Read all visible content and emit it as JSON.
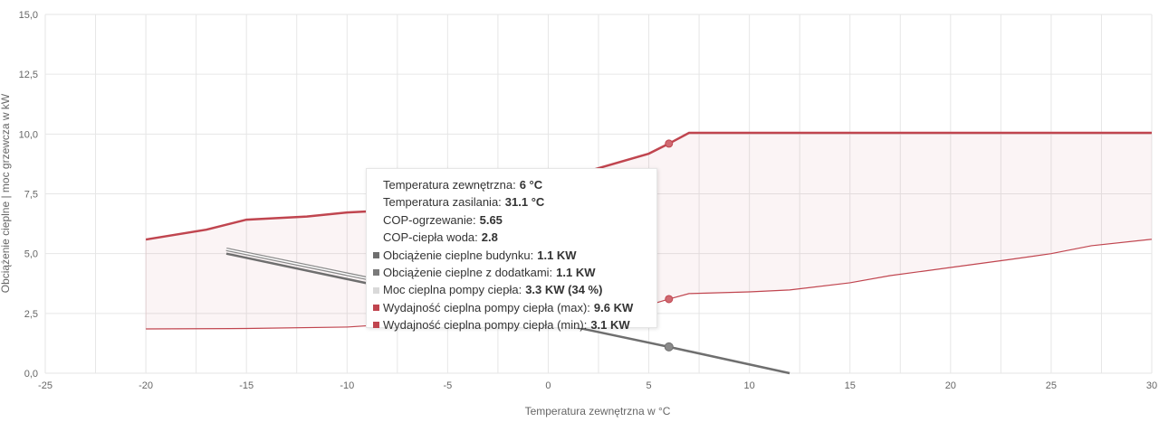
{
  "chart_data": {
    "type": "line",
    "title": "",
    "xlabel": "Temperatura zewnętrzna w °C",
    "ylabel": "Obciążenie cieplne | moc grzewcza w kW",
    "xlim": [
      -25,
      30
    ],
    "ylim": [
      0,
      15
    ],
    "grid": true,
    "x_ticks": [
      "-25",
      "-20",
      "-15",
      "-10",
      "-5",
      "0",
      "5",
      "10",
      "15",
      "20",
      "25",
      "30"
    ],
    "y_ticks": [
      "0,0",
      "2,5",
      "5,0",
      "7,5",
      "10,0",
      "12,5",
      "15,0"
    ],
    "series": [
      {
        "name": "Obciążenie cieplne budynku",
        "color": "#6f6f6f",
        "type": "line",
        "points": [
          [
            -16,
            5.0
          ],
          [
            6,
            1.1
          ],
          [
            12,
            0.0
          ]
        ]
      },
      {
        "name": "Obciążenie cieplne z dodatkami",
        "color": "#8a8a8a",
        "type": "line",
        "points": [
          [
            -16,
            5.18
          ],
          [
            -4,
            3.1
          ]
        ]
      },
      {
        "name": "Moc cieplna pompy ciepła",
        "color": "#d9d9d9",
        "type": "line",
        "points": []
      },
      {
        "name": "Wydajność cieplna pompy ciepła (max)",
        "color": "#c0454f",
        "type": "area-upper",
        "points": [
          [
            -20,
            5.59
          ],
          [
            -17,
            6.0
          ],
          [
            -15,
            6.42
          ],
          [
            -12,
            6.55
          ],
          [
            -10,
            6.72
          ],
          [
            -7,
            6.85
          ],
          [
            -5,
            7.1
          ],
          [
            -2,
            7.5
          ],
          [
            0,
            7.9
          ],
          [
            2,
            8.45
          ],
          [
            5,
            9.18
          ],
          [
            6,
            9.6
          ],
          [
            7,
            10.05
          ],
          [
            10,
            10.05
          ],
          [
            15,
            10.05
          ],
          [
            20,
            10.05
          ],
          [
            25,
            10.05
          ],
          [
            30,
            10.05
          ]
        ]
      },
      {
        "name": "Wydajność cieplna pompy ciepła (min)",
        "color": "#c0454f",
        "type": "area-lower",
        "points": [
          [
            -20,
            1.85
          ],
          [
            -15,
            1.87
          ],
          [
            -10,
            1.93
          ],
          [
            -5,
            2.2
          ],
          [
            0,
            2.5
          ],
          [
            5,
            2.85
          ],
          [
            6,
            3.1
          ],
          [
            7,
            3.33
          ],
          [
            10,
            3.4
          ],
          [
            12,
            3.48
          ],
          [
            15,
            3.78
          ],
          [
            17,
            4.08
          ],
          [
            20,
            4.42
          ],
          [
            23,
            4.76
          ],
          [
            25,
            5.0
          ],
          [
            27,
            5.33
          ],
          [
            30,
            5.6
          ]
        ]
      }
    ],
    "highlight_x": 6,
    "tooltip": {
      "header_rows": [
        {
          "label": "Temperatura zewnętrzna:",
          "value": "6 °C"
        },
        {
          "label": "Temperatura zasilania:",
          "value": "31.1 °C"
        },
        {
          "label": "COP-ogrzewanie:",
          "value": "5.65"
        },
        {
          "label": "COP-ciepła woda:",
          "value": "2.8"
        }
      ],
      "series_rows": [
        {
          "label": "Obciążenie cieplne budynku:",
          "value": "1.1 KW",
          "color": "#6f6f6f"
        },
        {
          "label": "Obciążenie cieplne z dodatkami:",
          "value": "1.1 KW",
          "color": "#7a7a7a"
        },
        {
          "label": "Moc cieplna pompy ciepła:",
          "value": "3.3 KW (34 %)",
          "color": "#d9d9d9"
        },
        {
          "label": "Wydajność cieplna pompy ciepła (max):",
          "value": "9.6 KW",
          "color": "#c0454f"
        },
        {
          "label": "Wydajność cieplna pompy ciepła (min):",
          "value": "3.1 KW",
          "color": "#c0454f"
        }
      ]
    }
  }
}
